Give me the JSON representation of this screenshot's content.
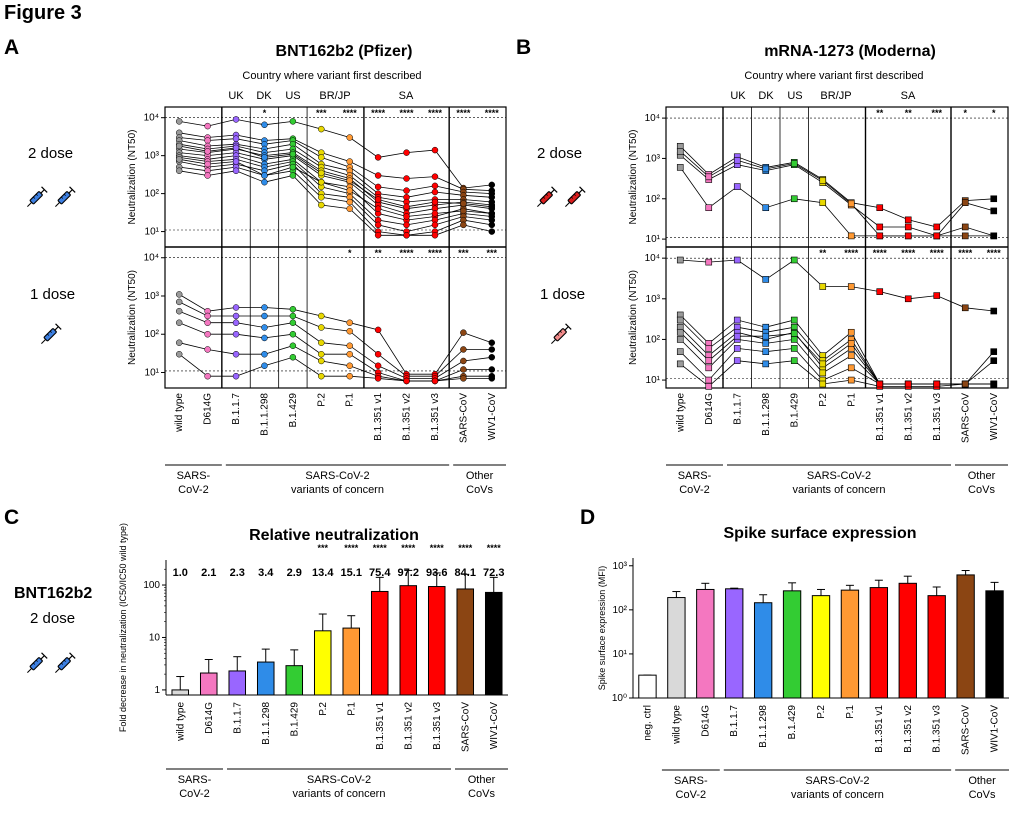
{
  "figure_title": "Figure 3",
  "panel_letters": [
    "A",
    "B",
    "C",
    "D"
  ],
  "doses": {
    "two": "2 dose",
    "one": "1 dose",
    "bnt": "BNT162b2"
  },
  "headers": {
    "country": "Country where variant first described",
    "regions": [
      "UK",
      "DK",
      "US",
      "BR/JP",
      "SA"
    ]
  },
  "group_labels": {
    "g1": [
      "SARS-",
      "CoV-2"
    ],
    "g2": [
      "SARS-CoV-2",
      "variants of concern"
    ],
    "g3": [
      "Other",
      "CoVs"
    ]
  },
  "chart_data": [
    {
      "panel": "A",
      "type": "line",
      "title": "BNT162b2 (Pfizer)",
      "ylabel": "Neutralization (NT50)",
      "yscale": "log",
      "ylim": [
        5,
        15000
      ],
      "categories": [
        "wild type",
        "D614G",
        "B.1.1.7",
        "B.1.1.298",
        "B.1.429",
        "P.2",
        "P.1",
        "B.1.351 v1",
        "B.1.351 v2",
        "B.1.351 v3",
        "SARS-CoV",
        "WIV1-CoV"
      ],
      "yticks": [
        "10¹",
        "10²",
        "10³",
        "10⁴"
      ],
      "sub_panels": [
        {
          "name": "2 dose",
          "significance": [
            "",
            "",
            "",
            "*",
            "",
            "***",
            "****",
            "****",
            "****",
            "****",
            "****",
            "****"
          ],
          "series": [
            {
              "values": [
                8000,
                6000,
                9000,
                6500,
                8000,
                5000,
                3000,
                900,
                1200,
                1400,
                140,
                170
              ]
            },
            {
              "values": [
                4000,
                3000,
                3500,
                2500,
                2800,
                1200,
                700,
                300,
                250,
                280,
                130,
                120
              ]
            },
            {
              "values": [
                3000,
                2500,
                2800,
                2000,
                2500,
                900,
                500,
                150,
                120,
                160,
                110,
                100
              ]
            },
            {
              "values": [
                2500,
                1800,
                2000,
                1500,
                2000,
                600,
                400,
                100,
                80,
                110,
                90,
                80
              ]
            },
            {
              "values": [
                2000,
                1500,
                1800,
                1200,
                1500,
                500,
                300,
                80,
                60,
                70,
                70,
                60
              ]
            },
            {
              "values": [
                1500,
                1200,
                1500,
                1000,
                1200,
                400,
                250,
                60,
                40,
                50,
                60,
                50
              ]
            },
            {
              "values": [
                1200,
                1000,
                1200,
                800,
                1000,
                300,
                200,
                50,
                30,
                40,
                50,
                40
              ]
            },
            {
              "values": [
                1000,
                800,
                1000,
                600,
                800,
                200,
                150,
                30,
                20,
                25,
                40,
                30
              ]
            },
            {
              "values": [
                900,
                700,
                800,
                500,
                700,
                150,
                100,
                20,
                15,
                20,
                30,
                25
              ]
            },
            {
              "values": [
                700,
                500,
                600,
                400,
                600,
                100,
                80,
                15,
                10,
                15,
                25,
                20
              ]
            },
            {
              "values": [
                500,
                400,
                500,
                300,
                400,
                80,
                60,
                10,
                8,
                10,
                20,
                15
              ]
            },
            {
              "values": [
                400,
                300,
                400,
                200,
                300,
                50,
                40,
                8,
                8,
                8,
                15,
                10
              ]
            },
            {
              "values": [
                800,
                600,
                700,
                300,
                500,
                200,
                120,
                40,
                25,
                30,
                35,
                30
              ]
            },
            {
              "values": [
                1800,
                1300,
                1600,
                900,
                1100,
                350,
                220,
                70,
                45,
                60,
                55,
                45
              ]
            }
          ]
        },
        {
          "name": "1 dose",
          "significance": [
            "",
            "",
            "",
            "",
            "",
            "",
            "*",
            "**",
            "****",
            "****",
            "***",
            "***"
          ],
          "series": [
            {
              "values": [
                1100,
                400,
                500,
                500,
                450,
                300,
                200,
                130,
                9,
                9,
                110,
                60
              ]
            },
            {
              "values": [
                700,
                300,
                300,
                300,
                300,
                150,
                120,
                30,
                8,
                8,
                40,
                40
              ]
            },
            {
              "values": [
                400,
                200,
                200,
                150,
                200,
                60,
                50,
                15,
                7,
                7,
                20,
                25
              ]
            },
            {
              "values": [
                200,
                100,
                100,
                80,
                100,
                30,
                30,
                10,
                6,
                6,
                12,
                12
              ]
            },
            {
              "values": [
                60,
                40,
                30,
                30,
                50,
                20,
                15,
                8,
                6,
                6,
                8,
                8
              ]
            },
            {
              "values": [
                30,
                8,
                8,
                15,
                25,
                8,
                8,
                7,
                6,
                6,
                7,
                7
              ]
            }
          ]
        }
      ]
    },
    {
      "panel": "B",
      "type": "line",
      "title": "mRNA-1273 (Moderna)",
      "ylabel": "Neutralization (NT50)",
      "yscale": "log",
      "ylim": [
        8,
        15000
      ],
      "categories": [
        "wild type",
        "D614G",
        "B.1.1.7",
        "B.1.1.298",
        "B.1.429",
        "P.2",
        "P.1",
        "B.1.351 v1",
        "B.1.351 v2",
        "B.1.351 v3",
        "SARS-CoV",
        "WIV1-CoV"
      ],
      "yticks": [
        "10¹",
        "10²",
        "10³",
        "10⁴"
      ],
      "sub_panels": [
        {
          "name": "2 dose",
          "significance": [
            "",
            "",
            "",
            "",
            "",
            "",
            "",
            "**",
            "**",
            "***",
            "*",
            "*"
          ],
          "series": [
            {
              "values": [
                2000,
                400,
                1100,
                600,
                800,
                300,
                80,
                60,
                30,
                20,
                90,
                100
              ]
            },
            {
              "values": [
                1200,
                300,
                700,
                500,
                700,
                250,
                70,
                20,
                20,
                12,
                80,
                50
              ]
            },
            {
              "values": [
                600,
                60,
                200,
                60,
                100,
                80,
                12,
                12,
                12,
                12,
                20,
                12
              ]
            },
            {
              "values": [
                1500,
                350,
                900,
                550,
                750,
                280,
                75,
                12,
                12,
                12,
                12,
                12
              ]
            }
          ]
        },
        {
          "name": "1 dose",
          "significance": [
            "",
            "",
            "",
            "",
            "",
            "**",
            "****",
            "****",
            "****",
            "****",
            "****",
            "****"
          ],
          "series": [
            {
              "values": [
                9000,
                8000,
                9000,
                3000,
                9000,
                2000,
                2000,
                1500,
                1000,
                1200,
                600,
                500
              ]
            },
            {
              "values": [
                400,
                80,
                300,
                200,
                300,
                40,
                150,
                8,
                8,
                8,
                8,
                8
              ]
            },
            {
              "values": [
                300,
                60,
                200,
                150,
                200,
                30,
                100,
                8,
                8,
                8,
                8,
                8
              ]
            },
            {
              "values": [
                200,
                40,
                150,
                100,
                150,
                20,
                60,
                8,
                8,
                8,
                8,
                8
              ]
            },
            {
              "values": [
                100,
                20,
                100,
                80,
                100,
                15,
                40,
                8,
                8,
                8,
                8,
                8
              ]
            },
            {
              "values": [
                50,
                10,
                60,
                50,
                60,
                10,
                20,
                8,
                8,
                8,
                8,
                8
              ]
            },
            {
              "values": [
                25,
                7,
                30,
                25,
                30,
                8,
                10,
                7,
                7,
                7,
                8,
                50
              ]
            },
            {
              "values": [
                150,
                30,
                120,
                120,
                140,
                25,
                80,
                8,
                8,
                8,
                8,
                30
              ]
            }
          ]
        }
      ]
    },
    {
      "panel": "C",
      "type": "bar",
      "title": "Relative neutralization",
      "ylabel": "Fold decrease in neutralization (IC50/IC50 wild type)",
      "yscale": "log",
      "ylim": [
        0.8,
        300
      ],
      "yticks": [
        "1",
        "10",
        "100"
      ],
      "categories": [
        "wild type",
        "D614G",
        "B.1.1.7",
        "B.1.1.298",
        "B.1.429",
        "P.2",
        "P.1",
        "B.1.351 v1",
        "B.1.351 v2",
        "B.1.351 v3",
        "SARS-CoV",
        "WIV1-CoV"
      ],
      "values": [
        1.0,
        2.1,
        2.3,
        3.4,
        2.9,
        13.4,
        15.1,
        75.4,
        97.2,
        93.6,
        84.1,
        72.3
      ],
      "value_labels": [
        "1.0",
        "2.1",
        "2.3",
        "3.4",
        "2.9",
        "13.4",
        "15.1",
        "75.4",
        "97.2",
        "93.6",
        "84.1",
        "72.3"
      ],
      "errors": [
        1.8,
        3.8,
        4.3,
        6.0,
        5.8,
        28,
        26,
        140,
        190,
        170,
        160,
        140
      ],
      "significance": [
        "",
        "",
        "",
        "",
        "",
        "***",
        "****",
        "****",
        "****",
        "****",
        "****",
        "****"
      ],
      "colors": [
        "#d9d9d9",
        "#f477c0",
        "#9966ff",
        "#2f8ce8",
        "#33cc33",
        "#ffff00",
        "#ff9933",
        "#ff0000",
        "#ff0000",
        "#ff0000",
        "#8b4513",
        "#000000"
      ]
    },
    {
      "panel": "D",
      "type": "bar",
      "title": "Spike surface expression",
      "ylabel": "Spike surface expression (MFI)",
      "yscale": "log",
      "ylim": [
        1,
        1500
      ],
      "yticks": [
        "10⁰",
        "10¹",
        "10²",
        "10³"
      ],
      "categories": [
        "neg. ctrl",
        "wild type",
        "D614G",
        "B.1.1.7",
        "B.1.1.298",
        "B.1.429",
        "P.2",
        "P.1",
        "B.1.351 v1",
        "B.1.351 v2",
        "B.1.351 v3",
        "SARS-CoV",
        "WIV1-CoV"
      ],
      "values": [
        3.3,
        190,
        290,
        300,
        145,
        270,
        210,
        280,
        320,
        400,
        210,
        620,
        270
      ],
      "errors": [
        3.3,
        260,
        400,
        310,
        220,
        410,
        290,
        360,
        470,
        580,
        330,
        780,
        420
      ],
      "colors": [
        "#ffffff",
        "#d9d9d9",
        "#f477c0",
        "#9966ff",
        "#2f8ce8",
        "#33cc33",
        "#ffff00",
        "#ff9933",
        "#ff0000",
        "#ff0000",
        "#ff0000",
        "#8b4513",
        "#000000"
      ]
    }
  ]
}
